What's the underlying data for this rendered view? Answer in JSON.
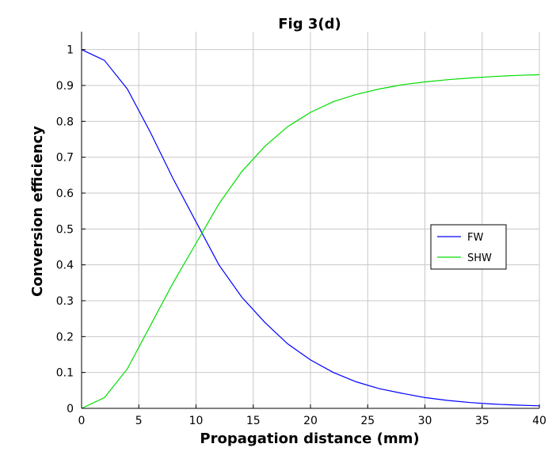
{
  "chart_data": {
    "type": "line",
    "title": "Fig 3(d)",
    "xlabel": "Propagation distance (mm)",
    "ylabel": "Conversion efficiency",
    "xlim": [
      0,
      40
    ],
    "ylim": [
      0,
      1.05
    ],
    "xticks": [
      0,
      5,
      10,
      15,
      20,
      25,
      30,
      35,
      40
    ],
    "xtick_labels": [
      "0",
      "5",
      "10",
      "15",
      "20",
      "25",
      "30",
      "35",
      "40"
    ],
    "yticks": [
      0,
      0.1,
      0.2,
      0.3,
      0.4,
      0.5,
      0.6,
      0.7,
      0.8,
      0.9,
      1
    ],
    "ytick_labels": [
      "0",
      "0.1",
      "0.2",
      "0.3",
      "0.4",
      "0.5",
      "0.6",
      "0.7",
      "0.8",
      "0.9",
      "1"
    ],
    "grid": true,
    "legend_position": "right",
    "x": [
      0,
      2,
      4,
      6,
      8,
      10,
      12,
      14,
      16,
      18,
      20,
      22,
      24,
      26,
      28,
      30,
      32,
      34,
      36,
      38,
      40
    ],
    "series": [
      {
        "name": "FW",
        "color": "#0000ff",
        "values": [
          1.0,
          0.97,
          0.89,
          0.77,
          0.64,
          0.52,
          0.4,
          0.31,
          0.24,
          0.18,
          0.135,
          0.1,
          0.074,
          0.055,
          0.042,
          0.03,
          0.022,
          0.016,
          0.012,
          0.009,
          0.007
        ]
      },
      {
        "name": "SHW",
        "color": "#00dd00",
        "values": [
          0.0,
          0.03,
          0.11,
          0.23,
          0.35,
          0.46,
          0.57,
          0.66,
          0.73,
          0.785,
          0.825,
          0.855,
          0.875,
          0.89,
          0.902,
          0.91,
          0.916,
          0.921,
          0.925,
          0.928,
          0.93
        ]
      }
    ]
  }
}
